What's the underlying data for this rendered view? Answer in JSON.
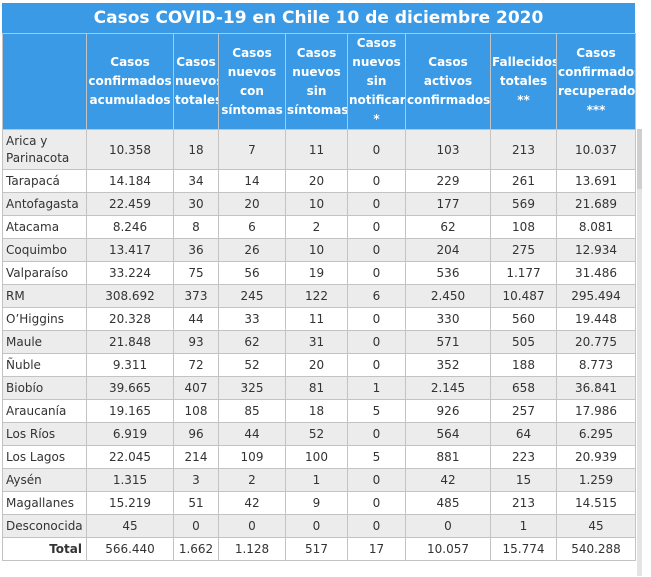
{
  "title": "Casos COVID-19 en Chile 10 de diciembre 2020",
  "headers": [
    "",
    "Casos\nconfirmados\nacumulados",
    "Casos\nnuevos\ntotales",
    "Casos\nnuevos\ncon\nsíntomas",
    "Casos\nnuevos\nsin\nsíntomas",
    "Casos\nnuevos\nsin\nnotificar\n*",
    "Casos\nactivos\nconfirmados",
    "Fallecidos\ntotales\n**",
    "Casos\nconfirmados\nrecuperados\n***"
  ],
  "rows": [
    {
      "region": "Arica y Parinacota",
      "values": [
        "10.358",
        "18",
        "7",
        "11",
        "0",
        "103",
        "213",
        "10.037"
      ]
    },
    {
      "region": "Tarapacá",
      "values": [
        "14.184",
        "34",
        "14",
        "20",
        "0",
        "229",
        "261",
        "13.691"
      ]
    },
    {
      "region": "Antofagasta",
      "values": [
        "22.459",
        "30",
        "20",
        "10",
        "0",
        "177",
        "569",
        "21.689"
      ]
    },
    {
      "region": "Atacama",
      "values": [
        "8.246",
        "8",
        "6",
        "2",
        "0",
        "62",
        "108",
        "8.081"
      ]
    },
    {
      "region": "Coquimbo",
      "values": [
        "13.417",
        "36",
        "26",
        "10",
        "0",
        "204",
        "275",
        "12.934"
      ]
    },
    {
      "region": "Valparaíso",
      "values": [
        "33.224",
        "75",
        "56",
        "19",
        "0",
        "536",
        "1.177",
        "31.486"
      ]
    },
    {
      "region": "RM",
      "values": [
        "308.692",
        "373",
        "245",
        "122",
        "6",
        "2.450",
        "10.487",
        "295.494"
      ]
    },
    {
      "region": "O’Higgins",
      "values": [
        "20.328",
        "44",
        "33",
        "11",
        "0",
        "330",
        "560",
        "19.448"
      ]
    },
    {
      "region": "Maule",
      "values": [
        "21.848",
        "93",
        "62",
        "31",
        "0",
        "571",
        "505",
        "20.775"
      ]
    },
    {
      "region": "Ñuble",
      "values": [
        "9.311",
        "72",
        "52",
        "20",
        "0",
        "352",
        "188",
        "8.773"
      ]
    },
    {
      "region": "Biobío",
      "values": [
        "39.665",
        "407",
        "325",
        "81",
        "1",
        "2.145",
        "658",
        "36.841"
      ]
    },
    {
      "region": "Araucanía",
      "values": [
        "19.165",
        "108",
        "85",
        "18",
        "5",
        "926",
        "257",
        "17.986"
      ]
    },
    {
      "region": "Los Ríos",
      "values": [
        "6.919",
        "96",
        "44",
        "52",
        "0",
        "564",
        "64",
        "6.295"
      ]
    },
    {
      "region": "Los Lagos",
      "values": [
        "22.045",
        "214",
        "109",
        "100",
        "5",
        "881",
        "223",
        "20.939"
      ]
    },
    {
      "region": "Aysén",
      "values": [
        "1.315",
        "3",
        "2",
        "1",
        "0",
        "42",
        "15",
        "1.259"
      ]
    },
    {
      "region": "Magallanes",
      "values": [
        "15.219",
        "51",
        "42",
        "9",
        "0",
        "485",
        "213",
        "14.515"
      ]
    },
    {
      "region": "Desconocida",
      "values": [
        "45",
        "0",
        "0",
        "0",
        "0",
        "0",
        "1",
        "45"
      ]
    }
  ],
  "total": {
    "label": "Total",
    "values": [
      "566.440",
      "1.662",
      "1.128",
      "517",
      "17",
      "10.057",
      "15.774",
      "540.288"
    ]
  },
  "colors": {
    "header_bg": "#3a9ae6",
    "header_text": "#ffffff",
    "stripe": "#ececec",
    "border": "#c3c3c3"
  }
}
